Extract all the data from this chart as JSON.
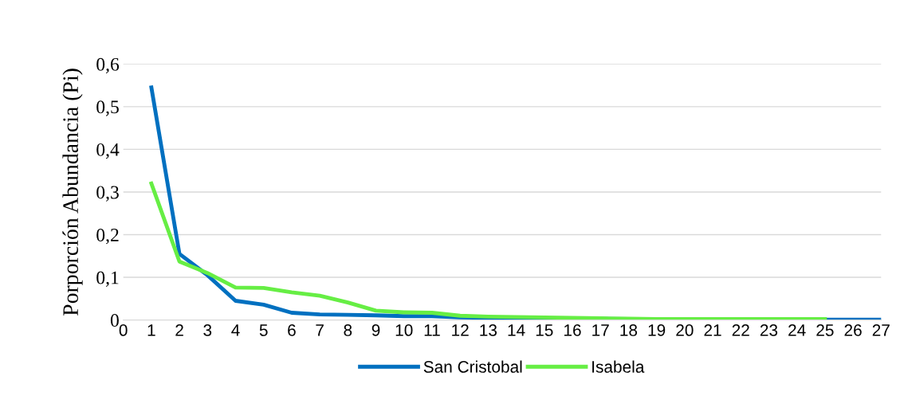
{
  "chart_data": {
    "type": "line",
    "ylabel": "Porporción Abundancia (Pi)",
    "xlim": [
      0,
      27
    ],
    "xticks": [
      0,
      1,
      2,
      3,
      4,
      5,
      6,
      7,
      8,
      9,
      10,
      11,
      12,
      13,
      14,
      15,
      16,
      17,
      18,
      19,
      20,
      21,
      22,
      23,
      24,
      25,
      26,
      27
    ],
    "ylim": [
      0,
      0.6
    ],
    "yticks": [
      {
        "value": 0,
        "label": "0"
      },
      {
        "value": 0.1,
        "label": "0,1"
      },
      {
        "value": 0.2,
        "label": "0,2"
      },
      {
        "value": 0.3,
        "label": "0,3"
      },
      {
        "value": 0.4,
        "label": "0,4"
      },
      {
        "value": 0.5,
        "label": "0,5"
      },
      {
        "value": 0.6,
        "label": "0,6"
      }
    ],
    "grid": "y",
    "legend": "bottom",
    "marker": "none",
    "line_style": "solid",
    "series": [
      {
        "name": "San Cristobal",
        "color": "#0070c0",
        "x": [
          1,
          2,
          3,
          4,
          5,
          6,
          7,
          8,
          9,
          10,
          11,
          12,
          13,
          14,
          15,
          16,
          17,
          18,
          19,
          20,
          21,
          22,
          23,
          24,
          25,
          26,
          27
        ],
        "values": [
          0.545,
          0.155,
          0.105,
          0.045,
          0.036,
          0.017,
          0.013,
          0.012,
          0.011,
          0.009,
          0.009,
          0.006,
          0.005,
          0.004,
          0.004,
          0.003,
          0.003,
          0.002,
          0.001,
          0.001,
          0.001,
          0.001,
          0.001,
          0.001,
          0.001,
          0.001,
          0.001
        ]
      },
      {
        "name": "Isabela",
        "color": "#66ee44",
        "x": [
          1,
          2,
          3,
          4,
          5,
          6,
          7,
          8,
          9,
          10,
          11,
          12,
          13,
          14,
          15,
          16,
          17,
          18,
          19,
          20,
          21,
          22,
          23,
          24,
          25
        ],
        "values": [
          0.32,
          0.137,
          0.11,
          0.076,
          0.075,
          0.065,
          0.057,
          0.041,
          0.022,
          0.018,
          0.017,
          0.01,
          0.008,
          0.007,
          0.006,
          0.005,
          0.004,
          0.003,
          0.002,
          0.002,
          0.002,
          0.002,
          0.002,
          0.002,
          0.002
        ]
      }
    ]
  }
}
